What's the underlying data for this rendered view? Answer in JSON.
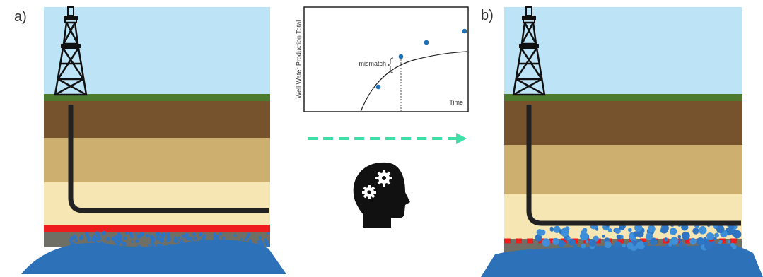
{
  "panels": [
    {
      "label": "a)"
    },
    {
      "label": "b)"
    }
  ],
  "inset_chart": {
    "y_label": "Well Water Production Total",
    "x_label": "Time",
    "annotation": "mismatch"
  }
}
